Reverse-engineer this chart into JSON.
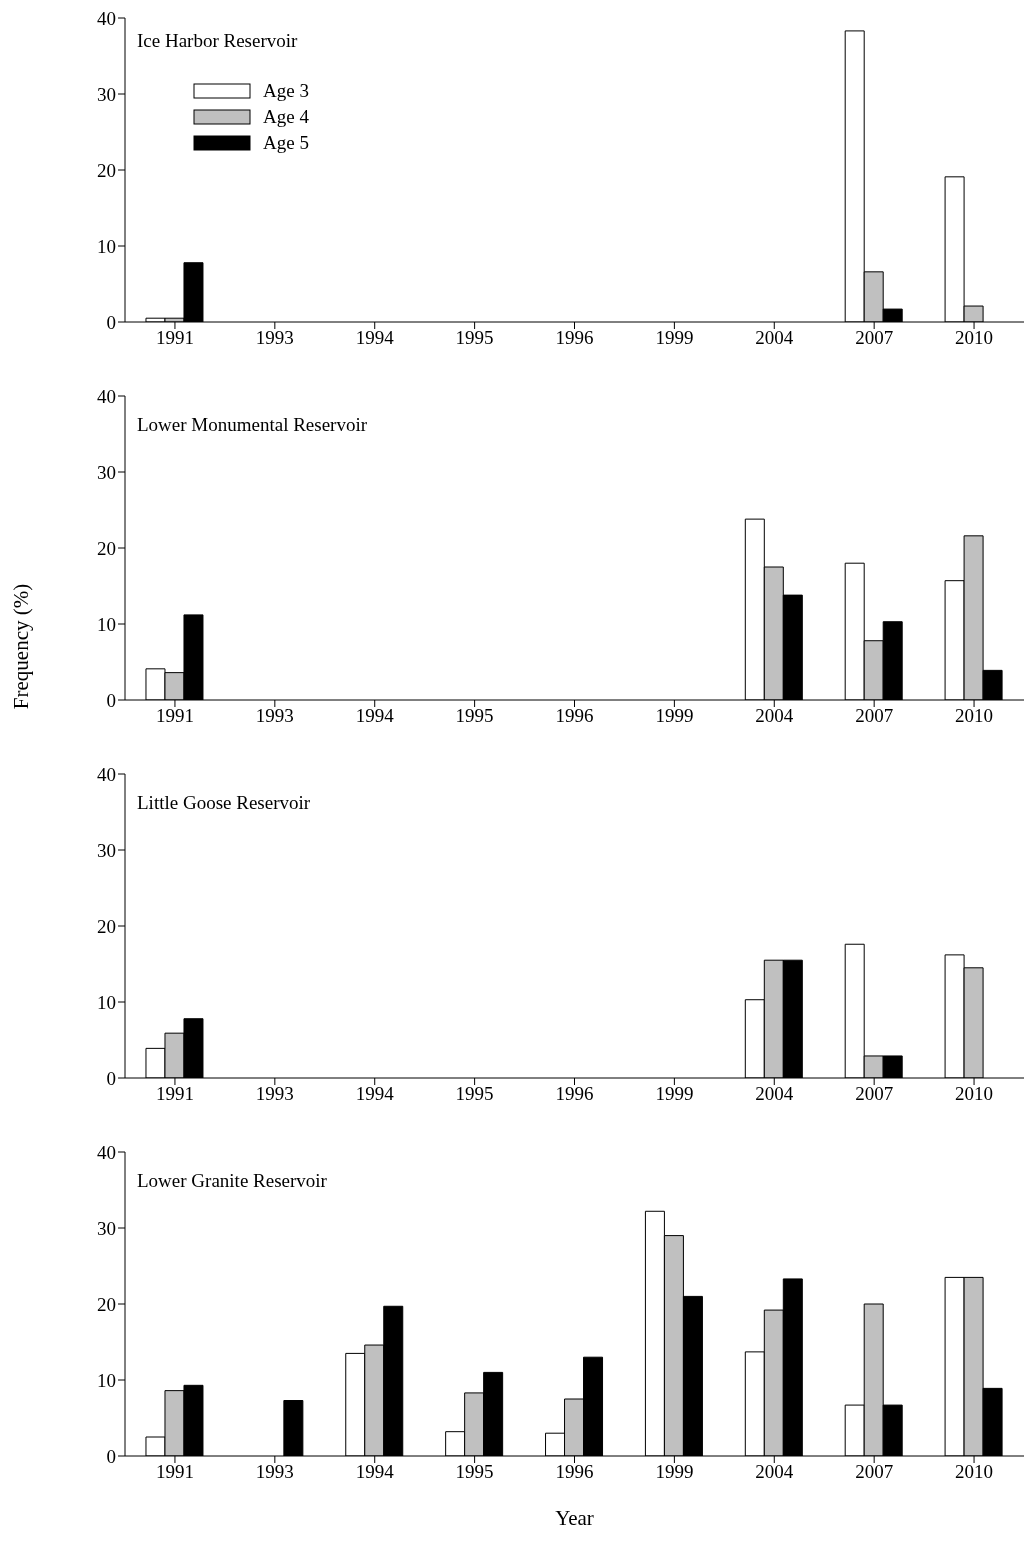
{
  "chart_data": [
    {
      "type": "bar",
      "title": "Ice Harbor Reservoir",
      "categories": [
        "1991",
        "1993",
        "1994",
        "1995",
        "1996",
        "1999",
        "2004",
        "2007",
        "2010"
      ],
      "ylim": [
        0,
        40
      ],
      "yticks": [
        0,
        10,
        20,
        30,
        40
      ],
      "legend": "top left",
      "series": [
        {
          "name": "Age 3",
          "color": "#ffffff",
          "values": [
            0.5,
            0,
            0,
            0,
            0,
            0,
            0,
            38.3,
            19.1
          ]
        },
        {
          "name": "Age 4",
          "color": "#c0c0c0",
          "values": [
            0.5,
            0,
            0,
            0,
            0,
            0,
            0,
            6.6,
            2.1
          ]
        },
        {
          "name": "Age 5",
          "color": "#000000",
          "values": [
            7.8,
            0,
            0,
            0,
            0,
            0,
            0,
            1.7,
            0
          ]
        }
      ]
    },
    {
      "type": "bar",
      "title": "Lower Monumental Reservoir",
      "ylabel": "Frequency (%)",
      "categories": [
        "1991",
        "1993",
        "1994",
        "1995",
        "1996",
        "1999",
        "2004",
        "2007",
        "2010"
      ],
      "ylim": [
        0,
        40
      ],
      "yticks": [
        0,
        10,
        20,
        30,
        40
      ],
      "series": [
        {
          "color": "#ffffff",
          "values": [
            4.1,
            0,
            0,
            0,
            0,
            0,
            23.8,
            18.0,
            15.7
          ]
        },
        {
          "color": "#c0c0c0",
          "values": [
            3.6,
            0,
            0,
            0,
            0,
            0,
            17.5,
            7.8,
            21.6
          ]
        },
        {
          "color": "#000000",
          "values": [
            11.2,
            0,
            0,
            0,
            0,
            0,
            13.8,
            10.3,
            3.9
          ]
        }
      ]
    },
    {
      "type": "bar",
      "title": "Little Goose Reservoir",
      "categories": [
        "1991",
        "1993",
        "1994",
        "1995",
        "1996",
        "1999",
        "2004",
        "2007",
        "2010"
      ],
      "ylim": [
        0,
        40
      ],
      "yticks": [
        0,
        10,
        20,
        30,
        40
      ],
      "series": [
        {
          "color": "#ffffff",
          "values": [
            3.9,
            0,
            0,
            0,
            0,
            0,
            10.3,
            17.6,
            16.2
          ]
        },
        {
          "color": "#c0c0c0",
          "values": [
            5.9,
            0,
            0,
            0,
            0,
            0,
            15.5,
            2.9,
            14.5
          ]
        },
        {
          "color": "#000000",
          "values": [
            7.8,
            0,
            0,
            0,
            0,
            0,
            15.5,
            2.9,
            0
          ]
        }
      ]
    },
    {
      "type": "bar",
      "title": "Lower Granite Reservoir",
      "xlabel": "Year",
      "categories": [
        "1991",
        "1993",
        "1994",
        "1995",
        "1996",
        "1999",
        "2004",
        "2007",
        "2010"
      ],
      "ylim": [
        0,
        40
      ],
      "yticks": [
        0,
        10,
        20,
        30,
        40
      ],
      "series": [
        {
          "color": "#ffffff",
          "values": [
            2.5,
            0,
            13.5,
            3.2,
            3.0,
            32.2,
            13.7,
            6.7,
            23.5
          ]
        },
        {
          "color": "#c0c0c0",
          "values": [
            8.6,
            0,
            14.6,
            8.3,
            7.5,
            29.0,
            19.2,
            20.0,
            23.5
          ]
        },
        {
          "color": "#000000",
          "values": [
            9.3,
            7.3,
            19.7,
            11.0,
            13.0,
            21.0,
            23.3,
            6.7,
            8.9
          ]
        }
      ]
    }
  ]
}
